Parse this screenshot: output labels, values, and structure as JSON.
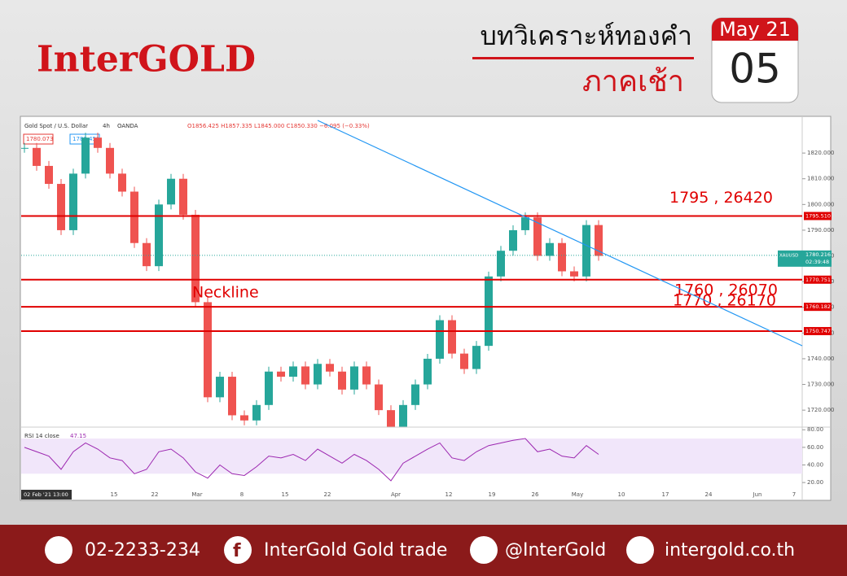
{
  "header": {
    "logo": "InterGOLD",
    "title": "บทวิเคราะห์ทองคำ",
    "subtitle": "ภาคเช้า",
    "calendar": {
      "month": "May 21",
      "day": "05"
    }
  },
  "chart_data": {
    "type": "candlestick",
    "symbol": "Gold Spot / U.S. Dollar",
    "interval": "4h",
    "source": "OANDA",
    "ohlc_text": "O1856.425 H1857.335 L1845.000 C1850.330 −6.095 (−0.33%)",
    "bid": "1780.073",
    "ask": "1780.451",
    "cursor_label": "02 Feb '21 13:00",
    "x_labels": [
      "15",
      "22",
      "Mar",
      "8",
      "15",
      "22",
      "Apr",
      "12",
      "19",
      "26",
      "May",
      "10",
      "17",
      "24",
      "Jun",
      "7"
    ],
    "up_color": "#26a69a",
    "down_color": "#ef5350",
    "series": [
      {
        "name": "XAUUSD",
        "values": [
          1822,
          1815,
          1808,
          1790,
          1812,
          1826,
          1822,
          1812,
          1805,
          1785,
          1776,
          1800,
          1810,
          1796,
          1762,
          1725,
          1733,
          1718,
          1716,
          1722,
          1735,
          1733,
          1737,
          1730,
          1738,
          1735,
          1728,
          1737,
          1730,
          1720,
          1712,
          1722,
          1730,
          1740,
          1755,
          1742,
          1736,
          1745,
          1772,
          1782,
          1790,
          1795,
          1780,
          1785,
          1774,
          1772,
          1792,
          1780
        ]
      }
    ],
    "ylim": [
      1713.4,
      1828.9
    ],
    "yticks": [
      {
        "value": 1720,
        "label": "1720.000"
      },
      {
        "value": 1730,
        "label": "1730.000"
      },
      {
        "value": 1740,
        "label": "1740.000"
      },
      {
        "value": 1750,
        "label": "1750.000"
      },
      {
        "value": 1760,
        "label": "1760.000"
      },
      {
        "value": 1770,
        "label": "1770.000"
      },
      {
        "value": 1780,
        "label": "1780.000"
      },
      {
        "value": 1790,
        "label": "1790.000"
      },
      {
        "value": 1800,
        "label": "1800.000"
      },
      {
        "value": 1810,
        "label": "1810.000"
      },
      {
        "value": 1820,
        "label": "1820.000"
      }
    ],
    "levels": [
      {
        "value": 1795.51,
        "label": "1795.510",
        "annotation": "1795 , 26420"
      },
      {
        "value": 1770.751,
        "label": "1770.751",
        "annotation": "1770 , 26170"
      },
      {
        "value": 1760.182,
        "label": "1760.182",
        "annotation": "1760 , 26070"
      },
      {
        "value": 1750.747,
        "label": "1750.747"
      }
    ],
    "level_color": "#e00000",
    "neckline": "Neckline",
    "last": {
      "name": "XAUUSD",
      "value": 1780.216,
      "label": "1780.216",
      "timer": "02:39:48"
    },
    "rsi": {
      "title": "RSI 14 close",
      "value": 47.15,
      "color": "#9c27b0",
      "band": [
        30,
        70
      ],
      "ylim": [
        9,
        83
      ],
      "yticks": [
        {
          "value": 20,
          "label": "20.00"
        },
        {
          "value": 40,
          "label": "40.00"
        },
        {
          "value": 60,
          "label": "60.00"
        },
        {
          "value": 80,
          "label": "80.00"
        }
      ],
      "values": [
        60,
        55,
        50,
        35,
        55,
        65,
        58,
        48,
        45,
        30,
        35,
        55,
        58,
        48,
        32,
        25,
        40,
        30,
        28,
        38,
        50,
        48,
        52,
        45,
        58,
        50,
        42,
        52,
        45,
        35,
        22,
        42,
        50,
        58,
        65,
        48,
        45,
        55,
        62,
        65,
        68,
        70,
        55,
        58,
        50,
        48,
        62,
        52
      ]
    }
  },
  "footer": {
    "phone": "02-2233-234",
    "facebook": "InterGold Gold trade",
    "line": "@InterGold",
    "website": "intergold.co.th"
  }
}
